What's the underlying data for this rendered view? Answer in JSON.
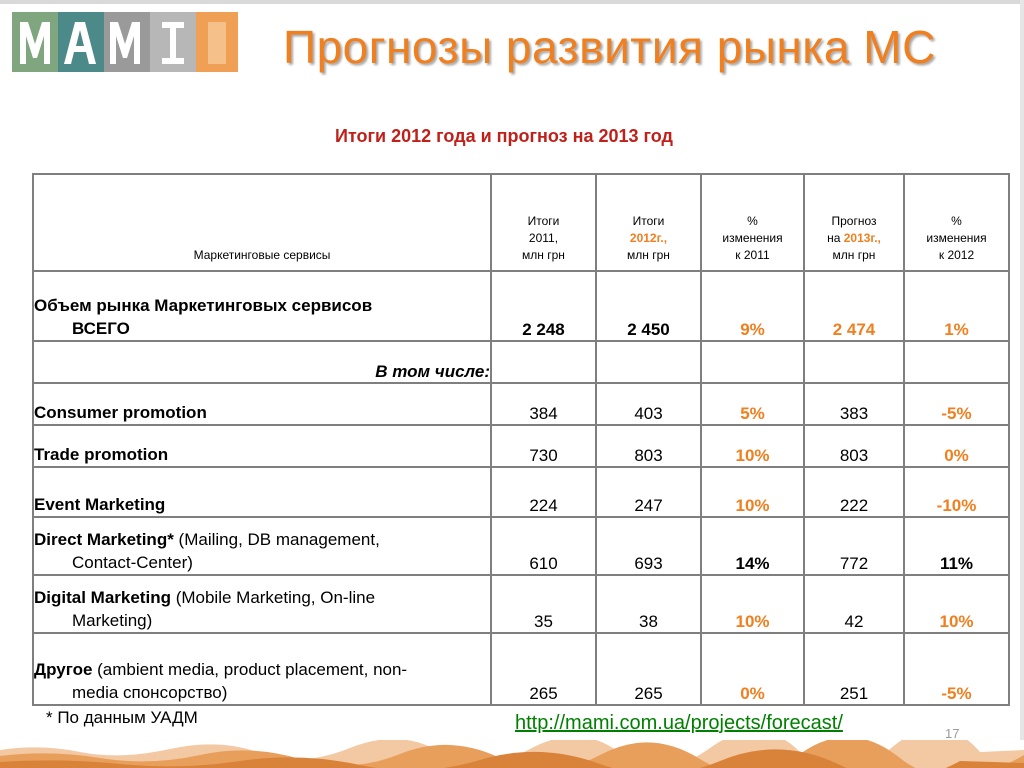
{
  "header": {
    "logo_text": "MAMI",
    "title": "Прогнозы развития рынка МС",
    "subtitle": "Итоги 2012 года и прогноз на 2013 год"
  },
  "table": {
    "corner": "Маркетинговые сервисы",
    "col1": {
      "l1": "Итоги",
      "l2": "2011,",
      "l3": "млн грн"
    },
    "col2": {
      "l1": "Итоги",
      "l2": "2012г.,",
      "l3": "млн грн"
    },
    "col3": {
      "l1": "%",
      "l2": "изменения",
      "l3": "к 2011"
    },
    "col4": {
      "l1": "Прогноз",
      "l2a": "на ",
      "l2b": "2013г.,",
      "l3": "млн грн"
    },
    "col5": {
      "l1": "%",
      "l2": "изменения",
      "l3": "к 2012"
    },
    "total": {
      "label1": "Объем рынка Маркетинговых сервисов",
      "label2": "ВСЕГО",
      "v2011": "2 248",
      "v2012": "2 450",
      "chg2011": "9%",
      "f2013": "2 474",
      "chg2012": "1%"
    },
    "subheader": "В том числе:",
    "rows": [
      {
        "bold": "Consumer promotion",
        "rest1": "",
        "rest2": "",
        "v2011": "384",
        "v2012": "403",
        "chg2011": "5%",
        "f2013": "383",
        "chg2012": "-5%"
      },
      {
        "bold": "Trade promotion",
        "rest1": "",
        "rest2": "",
        "v2011": "730",
        "v2012": "803",
        "chg2011": "10%",
        "f2013": "803",
        "chg2012": "0%"
      },
      {
        "bold": "Event Marketing",
        "rest1": "",
        "rest2": "",
        "v2011": "224",
        "v2012": "247",
        "chg2011": "10%",
        "f2013": "222",
        "chg2012": "-10%"
      },
      {
        "bold": "Direct Marketing*",
        "rest1": " (Mailing, DB management,",
        "rest2": "Contact-Center)",
        "v2011": "610",
        "v2012": "693",
        "chg2011": "14%",
        "f2013": "772",
        "chg2012": "11%"
      },
      {
        "bold": "Digital Marketing",
        "rest1": " (Mobile Marketing, On-line",
        "rest2": "Marketing)",
        "v2011": "35",
        "v2012": "38",
        "chg2011": "10%",
        "f2013": "42",
        "chg2012": "10%"
      },
      {
        "bold": "Другое",
        "rest1": " (ambient media, product placement, non-",
        "rest2": "media спонсорство)",
        "v2011": "265",
        "v2012": "265",
        "chg2011": "0%",
        "f2013": "251",
        "chg2012": "-5%"
      }
    ]
  },
  "footer": {
    "footnote": "* По данным УАДМ",
    "link": "http://mami.com.ua/projects/forecast/",
    "page_number": "17"
  },
  "colors": {
    "accent": "#f07f1f",
    "subtitle": "#c0201a",
    "link": "#008000",
    "border": "#7f7f7f"
  }
}
